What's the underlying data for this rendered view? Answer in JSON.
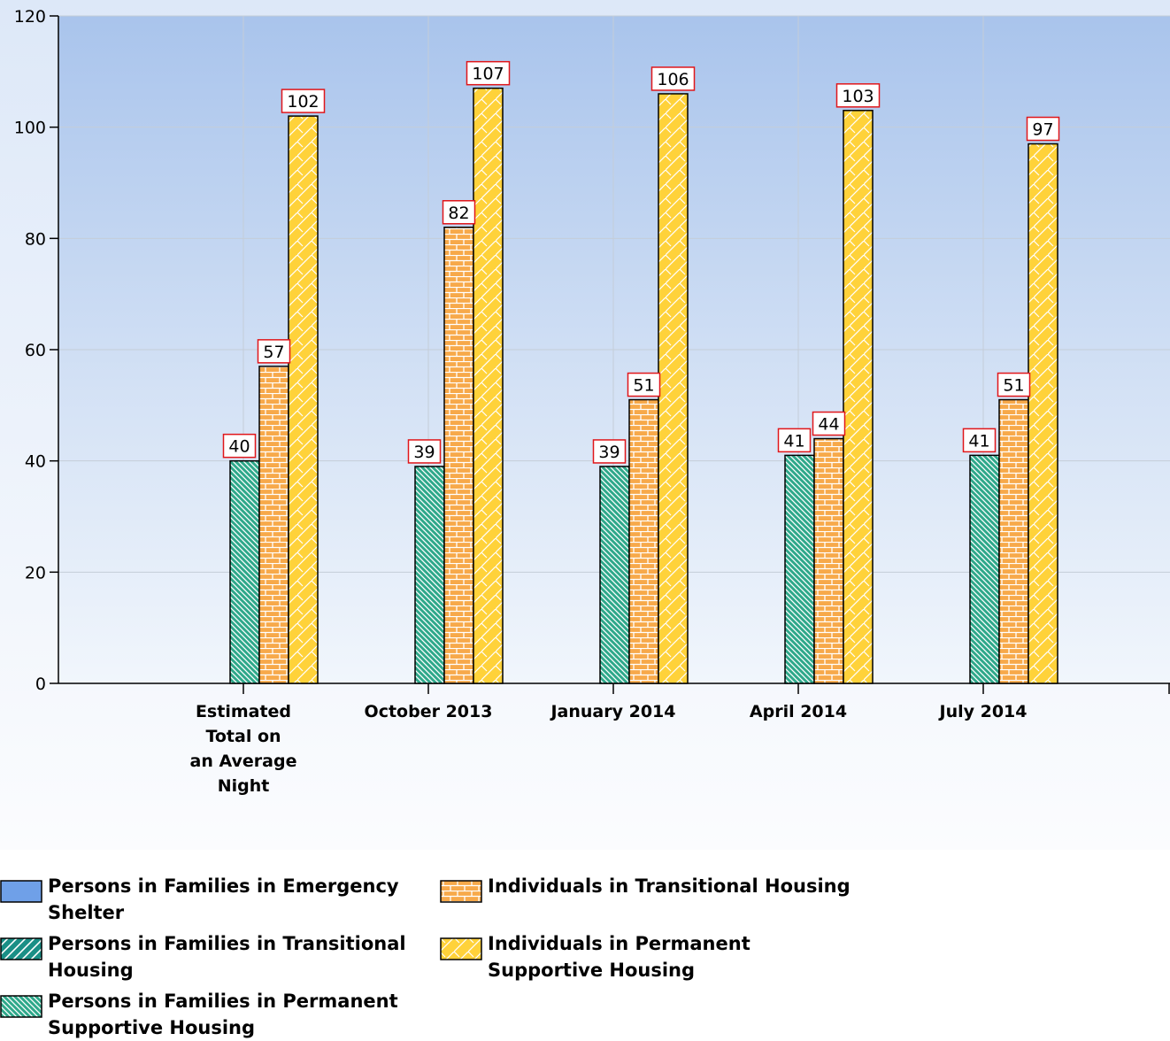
{
  "chart_data": {
    "type": "bar",
    "categories": [
      "Estimated Total on an Average Night",
      "October 2013",
      "January 2014",
      "April 2014",
      "July 2014"
    ],
    "category_label_lines": [
      [
        "Estimated",
        "Total on",
        "an Average",
        "Night"
      ],
      [
        "October 2013"
      ],
      [
        "January 2014"
      ],
      [
        "April 2014"
      ],
      [
        "July 2014"
      ]
    ],
    "series": [
      {
        "name": "Persons in Families in Emergency Shelter",
        "values": [
          null,
          null,
          null,
          null,
          null
        ],
        "color": "#6fa0e8",
        "pattern": "solid"
      },
      {
        "name": "Persons in Families in Transitional Housing",
        "values": [
          null,
          null,
          null,
          null,
          null
        ],
        "color": "#1a8f86",
        "pattern": "wide-diagonal"
      },
      {
        "name": "Persons in Families in Permanent Supportive Housing",
        "values": [
          40,
          39,
          39,
          41,
          41
        ],
        "color": "#2ea88a",
        "pattern": "diagonal"
      },
      {
        "name": "Individuals in Transitional Housing",
        "values": [
          57,
          82,
          51,
          44,
          51
        ],
        "color": "#f7a94a",
        "pattern": "brick"
      },
      {
        "name": "Individuals in Permanent Supportive Housing",
        "values": [
          102,
          107,
          106,
          103,
          97
        ],
        "color": "#ffd23a",
        "pattern": "zigzag"
      }
    ],
    "ylim": [
      0,
      120
    ],
    "yticks": [
      0,
      20,
      40,
      60,
      80,
      100,
      120
    ],
    "grid": true,
    "legend_position": "bottom-left"
  }
}
